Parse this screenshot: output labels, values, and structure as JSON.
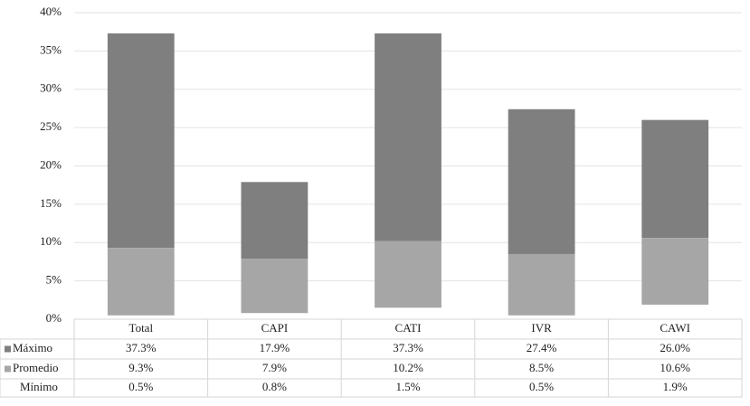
{
  "chart_data": {
    "type": "floating-bar",
    "categories": [
      "Total",
      "CAPI",
      "CATI",
      "IVR",
      "CAWI"
    ],
    "series": [
      {
        "name": "Máximo",
        "color": "#7f7f7f",
        "values": [
          37.3,
          17.9,
          37.3,
          27.4,
          26.0
        ],
        "value_labels": [
          "37.3%",
          "17.9%",
          "37.3%",
          "27.4%",
          "26.0%"
        ]
      },
      {
        "name": "Promedio",
        "color": "#a6a6a6",
        "values": [
          9.3,
          7.9,
          10.2,
          8.5,
          10.6
        ],
        "value_labels": [
          "9.3%",
          "7.9%",
          "10.2%",
          "8.5%",
          "10.6%"
        ]
      },
      {
        "name": "Mínimo",
        "values": [
          0.5,
          0.8,
          1.5,
          0.5,
          1.9
        ],
        "value_labels": [
          "0.5%",
          "0.8%",
          "1.5%",
          "0.5%",
          "1.9%"
        ]
      }
    ],
    "ylim": [
      0,
      40
    ],
    "yticks": [
      {
        "value": 0,
        "label": "0%"
      },
      {
        "value": 5,
        "label": "5%"
      },
      {
        "value": 10,
        "label": "10%"
      },
      {
        "value": 15,
        "label": "15%"
      },
      {
        "value": 20,
        "label": "20%"
      },
      {
        "value": 25,
        "label": "25%"
      },
      {
        "value": 30,
        "label": "30%"
      },
      {
        "value": 35,
        "label": "35%"
      },
      {
        "value": 40,
        "label": "40%"
      }
    ],
    "grid": true
  }
}
